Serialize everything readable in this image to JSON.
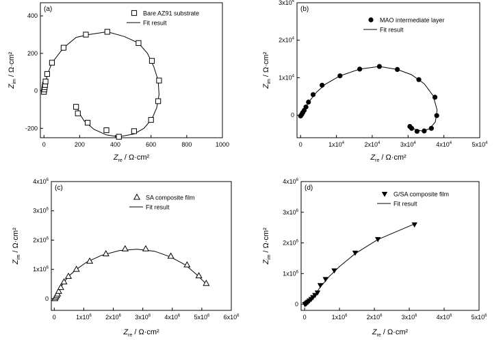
{
  "chart_data": [
    {
      "type": "scatter",
      "panel": "(a)",
      "legend": [
        "Bare AZ91 substrate",
        "Fit result"
      ],
      "legend_position": "top-right",
      "xlabel": {
        "main": "Z",
        "sub": "re",
        "unit": " / Ω·cm²"
      },
      "ylabel": {
        "main": "Z",
        "sub": "im",
        "unit": " / Ω·cm²"
      },
      "xlim": [
        -20,
        1000
      ],
      "ylim": [
        -250,
        470
      ],
      "xticks": [
        {
          "v": 0,
          "t": "0"
        },
        {
          "v": 200,
          "t": "200"
        },
        {
          "v": 400,
          "t": "400"
        },
        {
          "v": 600,
          "t": "600"
        },
        {
          "v": 800,
          "t": "800"
        },
        {
          "v": 1000,
          "t": "1000"
        }
      ],
      "yticks": [
        {
          "v": -200,
          "t": "-200"
        },
        {
          "v": 0,
          "t": "0"
        },
        {
          "v": 200,
          "t": "200"
        },
        {
          "v": 400,
          "t": "400"
        }
      ],
      "marker": "open-square",
      "points": [
        [
          0,
          -5
        ],
        [
          2,
          8
        ],
        [
          4,
          20
        ],
        [
          6,
          32
        ],
        [
          9,
          50
        ],
        [
          18,
          90
        ],
        [
          45,
          150
        ],
        [
          110,
          230
        ],
        [
          235,
          300
        ],
        [
          355,
          315
        ],
        [
          530,
          255
        ],
        [
          605,
          160
        ],
        [
          645,
          55
        ],
        [
          640,
          -55
        ],
        [
          600,
          -155
        ],
        [
          505,
          -215
        ],
        [
          420,
          -245
        ],
        [
          350,
          -210
        ],
        [
          245,
          -170
        ],
        [
          190,
          -120
        ],
        [
          180,
          -85
        ]
      ],
      "fit": [
        [
          0,
          -5
        ],
        [
          5,
          25
        ],
        [
          12,
          60
        ],
        [
          25,
          100
        ],
        [
          45,
          150
        ],
        [
          110,
          230
        ],
        [
          180,
          285
        ],
        [
          250,
          300
        ],
        [
          355,
          315
        ],
        [
          450,
          290
        ],
        [
          530,
          255
        ],
        [
          580,
          200
        ],
        [
          615,
          130
        ],
        [
          640,
          55
        ],
        [
          645,
          -20
        ],
        [
          632,
          -90
        ],
        [
          605,
          -150
        ],
        [
          560,
          -200
        ],
        [
          505,
          -230
        ],
        [
          420,
          -245
        ],
        [
          350,
          -235
        ],
        [
          280,
          -205
        ],
        [
          225,
          -160
        ],
        [
          195,
          -115
        ],
        [
          185,
          -80
        ]
      ]
    },
    {
      "type": "scatter",
      "panel": "(b)",
      "legend": [
        "MAO intermediate layer",
        "Fit result"
      ],
      "legend_position": "top-right",
      "xlabel": {
        "main": "Z",
        "sub": "re",
        "unit": " / Ω·cm²"
      },
      "ylabel": {
        "main": "Z",
        "sub": "im",
        "unit": " / Ω·cm²"
      },
      "xlim": [
        -1000,
        50000
      ],
      "ylim": [
        -6000,
        30000
      ],
      "xticks": [
        {
          "v": 0,
          "t": "0",
          "e": ""
        },
        {
          "v": 10000,
          "t": "1x10",
          "e": "4"
        },
        {
          "v": 20000,
          "t": "2x10",
          "e": "4"
        },
        {
          "v": 30000,
          "t": "3x10",
          "e": "4"
        },
        {
          "v": 40000,
          "t": "4x10",
          "e": "4"
        },
        {
          "v": 50000,
          "t": "5x10",
          "e": "4"
        }
      ],
      "yticks": [
        {
          "v": 0,
          "t": "0",
          "e": ""
        },
        {
          "v": 10000,
          "t": "1x10",
          "e": "4"
        },
        {
          "v": 20000,
          "t": "2x10",
          "e": "4"
        },
        {
          "v": 30000,
          "t": "3x10",
          "e": "4"
        }
      ],
      "marker": "filled-circle",
      "points": [
        [
          0,
          -200
        ],
        [
          300,
          200
        ],
        [
          600,
          700
        ],
        [
          1000,
          1300
        ],
        [
          1500,
          2200
        ],
        [
          2200,
          3500
        ],
        [
          3500,
          5500
        ],
        [
          6000,
          8000
        ],
        [
          11000,
          10500
        ],
        [
          16500,
          12300
        ],
        [
          22000,
          13000
        ],
        [
          27000,
          12200
        ],
        [
          33000,
          9500
        ],
        [
          37500,
          4800
        ],
        [
          38000,
          -100
        ],
        [
          36500,
          -3500
        ],
        [
          34500,
          -4200
        ],
        [
          32500,
          -4300
        ],
        [
          31000,
          -3500
        ],
        [
          30500,
          -3000
        ]
      ],
      "fit": [
        [
          0,
          -300
        ],
        [
          500,
          600
        ],
        [
          1200,
          1800
        ],
        [
          2500,
          3800
        ],
        [
          4500,
          6200
        ],
        [
          7000,
          8300
        ],
        [
          11000,
          10500
        ],
        [
          16500,
          12300
        ],
        [
          22000,
          13000
        ],
        [
          27000,
          12200
        ],
        [
          31000,
          10800
        ],
        [
          34500,
          8400
        ],
        [
          37000,
          5200
        ],
        [
          38100,
          1400
        ],
        [
          37600,
          -1800
        ],
        [
          36000,
          -3600
        ],
        [
          34000,
          -4200
        ],
        [
          32000,
          -3800
        ],
        [
          30800,
          -3100
        ]
      ]
    },
    {
      "type": "scatter",
      "panel": "(c)",
      "legend": [
        "SA composite film",
        "Fit result"
      ],
      "legend_position": "top-right",
      "xlabel": {
        "main": "Z",
        "sub": "re",
        "unit": " / Ω·cm²"
      },
      "ylabel": {
        "main": "Z",
        "sub": "im",
        "unit": " / Ω·cm²"
      },
      "xlim": [
        -100000,
        6000000
      ],
      "ylim": [
        -400000,
        4000000
      ],
      "xticks": [
        {
          "v": 0,
          "t": "0",
          "e": ""
        },
        {
          "v": 1000000,
          "t": "1x10",
          "e": "6"
        },
        {
          "v": 2000000,
          "t": "2x10",
          "e": "6"
        },
        {
          "v": 3000000,
          "t": "3x10",
          "e": "6"
        },
        {
          "v": 4000000,
          "t": "4x10",
          "e": "6"
        },
        {
          "v": 5000000,
          "t": "5x10",
          "e": "6"
        },
        {
          "v": 6000000,
          "t": "6x10",
          "e": "6"
        }
      ],
      "yticks": [
        {
          "v": 0,
          "t": "0",
          "e": ""
        },
        {
          "v": 1000000,
          "t": "1x10",
          "e": "6"
        },
        {
          "v": 2000000,
          "t": "2x10",
          "e": "6"
        },
        {
          "v": 3000000,
          "t": "3x10",
          "e": "6"
        },
        {
          "v": 4000000,
          "t": "4x10",
          "e": "6"
        }
      ],
      "marker": "open-triangle",
      "points": [
        [
          20000,
          0
        ],
        [
          50000,
          50000
        ],
        [
          80000,
          100000
        ],
        [
          110000,
          160000
        ],
        [
          150000,
          250000
        ],
        [
          220000,
          380000
        ],
        [
          330000,
          570000
        ],
        [
          480000,
          760000
        ],
        [
          750000,
          1000000
        ],
        [
          1200000,
          1280000
        ],
        [
          1750000,
          1530000
        ],
        [
          2400000,
          1700000
        ],
        [
          3100000,
          1700000
        ],
        [
          3950000,
          1450000
        ],
        [
          4500000,
          1150000
        ],
        [
          4900000,
          780000
        ],
        [
          5150000,
          520000
        ]
      ],
      "fit": [
        [
          0,
          0
        ],
        [
          60000,
          80000
        ],
        [
          150000,
          250000
        ],
        [
          300000,
          520000
        ],
        [
          480000,
          760000
        ],
        [
          750000,
          1000000
        ],
        [
          1100000,
          1250000
        ],
        [
          1600000,
          1480000
        ],
        [
          2200000,
          1640000
        ],
        [
          2800000,
          1690000
        ],
        [
          3400000,
          1620000
        ],
        [
          3950000,
          1420000
        ],
        [
          4450000,
          1150000
        ],
        [
          4850000,
          800000
        ],
        [
          5150000,
          500000
        ]
      ]
    },
    {
      "type": "scatter",
      "panel": "(d)",
      "legend": [
        "G/SA composite film",
        "Fit result"
      ],
      "legend_position": "top-right",
      "xlabel": {
        "main": "Z",
        "sub": "re",
        "unit": " / Ω·cm²"
      },
      "ylabel": {
        "main": "Z",
        "sub": "im",
        "unit": " / Ω·cm²"
      },
      "xlim": [
        -100000,
        5000000
      ],
      "ylim": [
        -200000,
        4000000
      ],
      "xticks": [
        {
          "v": 0,
          "t": "0",
          "e": ""
        },
        {
          "v": 1000000,
          "t": "1x10",
          "e": "6"
        },
        {
          "v": 2000000,
          "t": "2x10",
          "e": "6"
        },
        {
          "v": 3000000,
          "t": "3x10",
          "e": "6"
        },
        {
          "v": 4000000,
          "t": "4x10",
          "e": "6"
        },
        {
          "v": 5000000,
          "t": "5x10",
          "e": "6"
        }
      ],
      "yticks": [
        {
          "v": 0,
          "t": "0",
          "e": ""
        },
        {
          "v": 1000000,
          "t": "1x10",
          "e": "6"
        },
        {
          "v": 2000000,
          "t": "2x10",
          "e": "6"
        },
        {
          "v": 3000000,
          "t": "3x10",
          "e": "6"
        },
        {
          "v": 4000000,
          "t": "4x10",
          "e": "6"
        }
      ],
      "marker": "filled-triangle-down",
      "points": [
        [
          10000,
          0
        ],
        [
          40000,
          20000
        ],
        [
          70000,
          50000
        ],
        [
          100000,
          80000
        ],
        [
          140000,
          120000
        ],
        [
          190000,
          170000
        ],
        [
          240000,
          230000
        ],
        [
          300000,
          300000
        ],
        [
          370000,
          380000
        ],
        [
          450000,
          620000
        ],
        [
          600000,
          820000
        ],
        [
          850000,
          1100000
        ],
        [
          1450000,
          1680000
        ],
        [
          2100000,
          2120000
        ],
        [
          3150000,
          2600000
        ]
      ],
      "fit": [
        [
          0,
          0
        ],
        [
          100000,
          80000
        ],
        [
          250000,
          230000
        ],
        [
          450000,
          560000
        ],
        [
          700000,
          900000
        ],
        [
          1000000,
          1230000
        ],
        [
          1450000,
          1650000
        ],
        [
          2100000,
          2110000
        ],
        [
          3150000,
          2620000
        ]
      ]
    }
  ]
}
